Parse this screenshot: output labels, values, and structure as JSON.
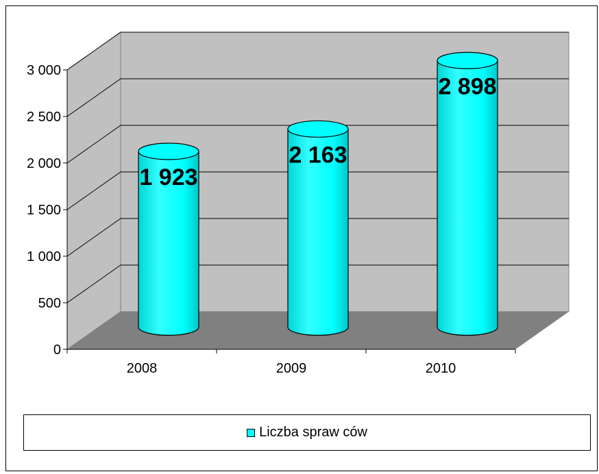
{
  "chart_data": {
    "type": "bar",
    "categories": [
      "2008",
      "2009",
      "2010"
    ],
    "series": [
      {
        "name": "Liczba spraw ców",
        "values": [
          1923,
          2163,
          2898
        ],
        "labels": [
          "1 923",
          "2 163",
          "2 898"
        ]
      }
    ],
    "ylim": [
      0,
      3000
    ],
    "y_ticks": [
      0,
      500,
      1000,
      1500,
      2000,
      2500,
      3000
    ],
    "y_tick_labels": [
      "0",
      "500",
      "1 000",
      "1 500",
      "2 000",
      "2 500",
      "3 000"
    ],
    "grid": true,
    "legend_position": "bottom",
    "title": "",
    "xlabel": "",
    "ylabel": ""
  },
  "colors": {
    "bar": "#00FFFF",
    "wall": "#C0C0C0",
    "floor": "#808080",
    "grid": "#000000"
  },
  "legend": {
    "label": "Liczba spraw ców"
  }
}
